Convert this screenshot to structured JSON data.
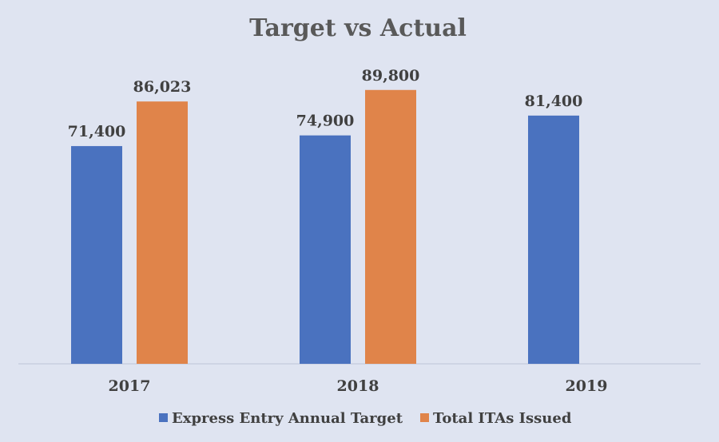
{
  "chart_data": {
    "type": "bar",
    "title": "Target vs Actual",
    "xlabel": "",
    "ylabel": "",
    "ylim": [
      0,
      90000
    ],
    "grid": false,
    "legend_position": "bottom",
    "categories": [
      "2017",
      "2018",
      "2019"
    ],
    "series": [
      {
        "name": "Express Entry Annual Target",
        "color": "#4a72bf",
        "values": [
          71400,
          74900,
          81400
        ],
        "labels": [
          "71,400",
          "74,900",
          "81,400"
        ]
      },
      {
        "name": "Total ITAs Issued",
        "color": "#e0844a",
        "values": [
          86023,
          89800,
          null
        ],
        "labels": [
          "86,023",
          "89,800",
          ""
        ]
      }
    ]
  }
}
